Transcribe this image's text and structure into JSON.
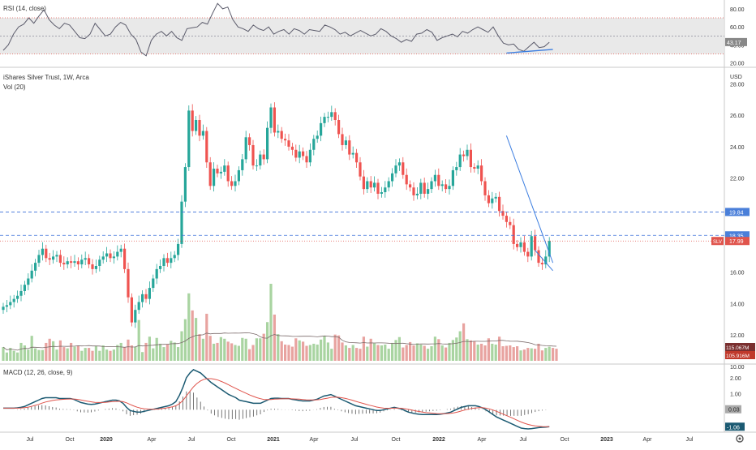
{
  "instrument": {
    "name": "iShares Silver Trust",
    "interval": "1W",
    "exchange": "Arca",
    "title_line": "iShares Silver Trust, 1W, Arca",
    "volume_indicator": "Vol (20)",
    "currency": "USD",
    "ticker": "SLV",
    "last_price": "17.99"
  },
  "colors": {
    "up": "#26a69a",
    "down": "#ef5350",
    "volume_up": "#a9d4a1",
    "volume_down": "#e8a3a0",
    "rsi_line": "#5b5b6b",
    "rsi_band_fill": "#e3e3e3",
    "rsi_band_border": "#e0544c",
    "macd_line": "#1b5a72",
    "signal_line": "#e0544c",
    "trendline": "#3b7de0",
    "price_tag": "#e0544c",
    "dashed_level": "#3b6fd9"
  },
  "chart_data": [
    {
      "type": "line",
      "title": "RSI (14, close)",
      "ylim": [
        17,
        88
      ],
      "y_ticks": [
        "80.00",
        "60.00",
        "40.00",
        "20.00"
      ],
      "y_tick_values": [
        80,
        60,
        40,
        20
      ],
      "bands": [
        30,
        70
      ],
      "last_value_label": "43.17",
      "last_value": 43.17,
      "values": [
        34,
        40,
        52,
        60,
        63,
        70,
        64,
        72,
        79,
        68,
        62,
        58,
        64,
        62,
        55,
        48,
        47,
        52,
        64,
        57,
        50,
        52,
        60,
        65,
        62,
        52,
        46,
        32,
        28,
        45,
        52,
        55,
        50,
        55,
        48,
        45,
        58,
        59,
        60,
        65,
        63,
        75,
        86,
        80,
        82,
        68,
        60,
        58,
        55,
        62,
        58,
        56,
        60,
        52,
        55,
        57,
        52,
        58,
        56,
        52,
        57,
        56,
        55,
        62,
        60,
        57,
        52,
        54,
        50,
        53,
        56,
        53,
        50,
        52,
        58,
        55,
        50,
        47,
        43,
        46,
        44,
        52,
        53,
        57,
        54,
        45,
        48,
        50,
        52,
        49,
        55,
        53,
        57,
        60,
        57,
        54,
        60,
        50,
        42,
        40,
        41,
        35,
        33,
        38,
        43,
        37,
        38,
        43
      ]
    },
    {
      "type": "candlestick",
      "title": "iShares Silver Trust, 1W, Arca",
      "ylabel": "USD",
      "ylim": [
        10.2,
        28.8
      ],
      "y_ticks": [
        "28.00",
        "26.00",
        "24.00",
        "22.00",
        "16.00",
        "14.00",
        "12.00",
        "10.00"
      ],
      "y_tick_values": [
        28,
        26,
        24,
        22,
        16,
        14,
        12,
        10
      ],
      "closes": [
        13.8,
        13.9,
        14.1,
        14.3,
        14.5,
        14.8,
        15.2,
        15.6,
        16.1,
        16.6,
        17.1,
        17.5,
        16.9,
        16.8,
        17.0,
        17.1,
        16.6,
        16.5,
        16.7,
        16.6,
        16.7,
        16.5,
        16.8,
        16.9,
        16.5,
        16.2,
        16.4,
        16.8,
        17.0,
        17.2,
        16.9,
        17.0,
        17.3,
        17.5,
        16.2,
        14.4,
        12.8,
        13.6,
        14.1,
        14.6,
        14.3,
        15.0,
        15.6,
        16.2,
        16.4,
        16.9,
        16.6,
        16.9,
        17.1,
        17.8,
        20.5,
        22.7,
        26.3,
        25.0,
        25.7,
        24.7,
        25.0,
        23.0,
        21.5,
        22.6,
        22.3,
        22.4,
        22.8,
        21.8,
        21.5,
        21.8,
        22.5,
        23.2,
        24.6,
        24.1,
        22.8,
        22.8,
        23.5,
        23.2,
        25.2,
        26.5,
        24.9,
        25.0,
        24.5,
        24.4,
        24.0,
        23.8,
        23.3,
        23.7,
        23.4,
        23.0,
        23.8,
        24.5,
        24.7,
        25.5,
        25.9,
        25.9,
        26.2,
        25.7,
        24.8,
        24.1,
        24.4,
        23.5,
        23.6,
        23.0,
        22.1,
        21.3,
        21.8,
        21.4,
        21.7,
        21.0,
        21.1,
        21.4,
        21.8,
        22.3,
        22.8,
        23.0,
        22.2,
        21.6,
        21.4,
        20.9,
        21.0,
        21.7,
        21.0,
        21.3,
        21.8,
        22.2,
        21.5,
        21.6,
        21.3,
        21.5,
        22.5,
        22.7,
        23.5,
        23.4,
        23.8,
        22.7,
        22.6,
        22.8,
        21.8,
        20.9,
        20.4,
        20.7,
        20.8,
        19.9,
        19.6,
        19.2,
        19.0,
        17.8,
        17.6,
        17.9,
        17.3,
        17.0,
        18.3,
        17.4,
        16.6,
        16.5,
        17.0,
        17.99
      ],
      "volumes": [
        33,
        20,
        31,
        24,
        20,
        43,
        37,
        27,
        60,
        30,
        26,
        26,
        43,
        53,
        47,
        27,
        49,
        33,
        30,
        43,
        34,
        37,
        24,
        31,
        31,
        24,
        36,
        24,
        37,
        27,
        24,
        27,
        38,
        43,
        33,
        51,
        37,
        34,
        98,
        21,
        43,
        58,
        30,
        55,
        41,
        33,
        40,
        48,
        44,
        33,
        71,
        100,
        162,
        121,
        103,
        64,
        53,
        113,
        60,
        41,
        43,
        57,
        53,
        46,
        42,
        38,
        36,
        55,
        53,
        28,
        38,
        54,
        54,
        65,
        93,
        185,
        111,
        64,
        47,
        39,
        38,
        34,
        54,
        49,
        46,
        36,
        38,
        41,
        39,
        51,
        59,
        44,
        29,
        63,
        61,
        44,
        37,
        31,
        38,
        31,
        29,
        58,
        34,
        53,
        42,
        38,
        37,
        39,
        29,
        43,
        50,
        57,
        32,
        38,
        45,
        37,
        42,
        39,
        36,
        29,
        35,
        58,
        52,
        37,
        32,
        43,
        50,
        56,
        71,
        90,
        52,
        49,
        47,
        39,
        41,
        37,
        54,
        41,
        39,
        58,
        35,
        36,
        37,
        33,
        35,
        25,
        27,
        31,
        30,
        29,
        41,
        25,
        31,
        34,
        31,
        29
      ],
      "volume_labels": [
        "115.067M",
        "105.916M"
      ],
      "levels": [
        {
          "value": 19.84,
          "label": "19.84",
          "style": "dashed"
        },
        {
          "value": 18.35,
          "label": "18.35",
          "style": "dashed"
        },
        {
          "value": 17.99,
          "label": "17.99",
          "style": "dotted"
        }
      ],
      "trendlines": [
        {
          "from": [
            141,
            24.7
          ],
          "to": [
            154,
            16.6
          ]
        },
        {
          "from": [
            149,
            17.4
          ],
          "to": [
            154,
            16.1
          ]
        }
      ]
    },
    {
      "type": "line",
      "title": "MACD (12, 26, close, 9)",
      "ylim": [
        -1.3,
        2.7
      ],
      "y_ticks": [
        "2.00",
        "1.00",
        "0.00"
      ],
      "y_tick_values": [
        2,
        1,
        0
      ],
      "last_value_labels": [
        "0.03",
        "-1.06"
      ],
      "series": [
        {
          "name": "",
          "values": [
            0.1,
            0.1,
            0.1,
            0.1,
            0.12,
            0.15,
            0.2,
            0.3,
            0.4,
            0.5,
            0.6,
            0.7,
            0.75,
            0.75,
            0.75,
            0.75,
            0.7,
            0.7,
            0.7,
            0.7,
            0.65,
            0.55,
            0.45,
            0.4,
            0.35,
            0.33,
            0.35,
            0.4,
            0.45,
            0.5,
            0.55,
            0.6,
            0.6,
            0.55,
            0.4,
            0.15,
            -0.05,
            -0.1,
            -0.15,
            -0.15,
            -0.1,
            -0.05,
            0.0,
            0.05,
            0.1,
            0.15,
            0.2,
            0.25,
            0.35,
            0.5,
            0.9,
            1.4,
            2.0,
            2.3,
            2.5,
            2.4,
            2.3,
            2.1,
            1.9,
            1.7,
            1.55,
            1.4,
            1.25,
            1.1,
            0.95,
            0.85,
            0.75,
            0.6,
            0.55,
            0.5,
            0.45,
            0.4,
            0.4,
            0.4,
            0.5,
            0.6,
            0.7,
            0.72,
            0.72,
            0.7,
            0.7,
            0.7,
            0.65,
            0.62,
            0.58,
            0.55,
            0.55,
            0.55,
            0.6,
            0.65,
            0.75,
            0.85,
            0.9,
            0.95,
            0.85,
            0.75,
            0.65,
            0.55,
            0.45,
            0.35,
            0.25,
            0.2,
            0.15,
            0.1,
            0.05,
            0.0,
            -0.05,
            -0.05,
            0.0,
            0.05,
            0.1,
            0.15,
            0.1,
            0.05,
            -0.05,
            -0.15,
            -0.2,
            -0.25,
            -0.28,
            -0.3,
            -0.3,
            -0.3,
            -0.3,
            -0.3,
            -0.28,
            -0.25,
            -0.2,
            -0.15,
            -0.05,
            0.05,
            0.15,
            0.2,
            0.25,
            0.25,
            0.25,
            0.2,
            0.12,
            0.0,
            -0.15,
            -0.3,
            -0.45,
            -0.55,
            -0.65,
            -0.75,
            -0.85,
            -0.95,
            -1.05,
            -1.15,
            -1.18,
            -1.2,
            -1.18,
            -1.15,
            -1.12,
            -1.1,
            -1.08,
            -1.06
          ]
        },
        {
          "name": "",
          "values": [
            0.1,
            0.1,
            0.1,
            0.1,
            0.1,
            0.11,
            0.13,
            0.16,
            0.21,
            0.27,
            0.33,
            0.41,
            0.48,
            0.53,
            0.58,
            0.61,
            0.63,
            0.65,
            0.66,
            0.67,
            0.67,
            0.65,
            0.61,
            0.57,
            0.53,
            0.49,
            0.46,
            0.45,
            0.45,
            0.46,
            0.48,
            0.5,
            0.52,
            0.53,
            0.5,
            0.43,
            0.33,
            0.24,
            0.16,
            0.1,
            0.06,
            0.04,
            0.03,
            0.03,
            0.04,
            0.07,
            0.1,
            0.14,
            0.18,
            0.25,
            0.38,
            0.58,
            0.86,
            1.15,
            1.43,
            1.64,
            1.8,
            1.9,
            1.94,
            1.94,
            1.9,
            1.85,
            1.76,
            1.66,
            1.55,
            1.44,
            1.33,
            1.22,
            1.12,
            1.02,
            0.92,
            0.83,
            0.75,
            0.69,
            0.64,
            0.64,
            0.64,
            0.66,
            0.67,
            0.68,
            0.69,
            0.69,
            0.68,
            0.67,
            0.66,
            0.64,
            0.62,
            0.61,
            0.61,
            0.62,
            0.64,
            0.68,
            0.72,
            0.77,
            0.79,
            0.78,
            0.75,
            0.71,
            0.66,
            0.6,
            0.53,
            0.46,
            0.4,
            0.34,
            0.28,
            0.23,
            0.17,
            0.13,
            0.1,
            0.09,
            0.09,
            0.1,
            0.1,
            0.09,
            0.06,
            0.02,
            -0.02,
            -0.07,
            -0.11,
            -0.15,
            -0.18,
            -0.2,
            -0.22,
            -0.24,
            -0.25,
            -0.25,
            -0.24,
            -0.22,
            -0.19,
            -0.14,
            -0.08,
            -0.02,
            0.03,
            0.08,
            0.11,
            0.13,
            0.13,
            0.1,
            0.05,
            -0.02,
            -0.1,
            -0.19,
            -0.28,
            -0.38,
            -0.47,
            -0.57,
            -0.67,
            -0.77,
            -0.85,
            -0.92,
            -0.97,
            -1.01,
            -1.03,
            -1.05,
            -1.06,
            -1.06
          ]
        }
      ]
    }
  ],
  "x_axis": {
    "labels": [
      "Jul",
      "Oct",
      "2020",
      "Apr",
      "Jul",
      "Oct",
      "2021",
      "Apr",
      "Jul",
      "Oct",
      "2022",
      "Apr",
      "Jul",
      "Oct",
      "2023",
      "Apr",
      "Jul"
    ]
  },
  "settings_icon": "gear-icon"
}
